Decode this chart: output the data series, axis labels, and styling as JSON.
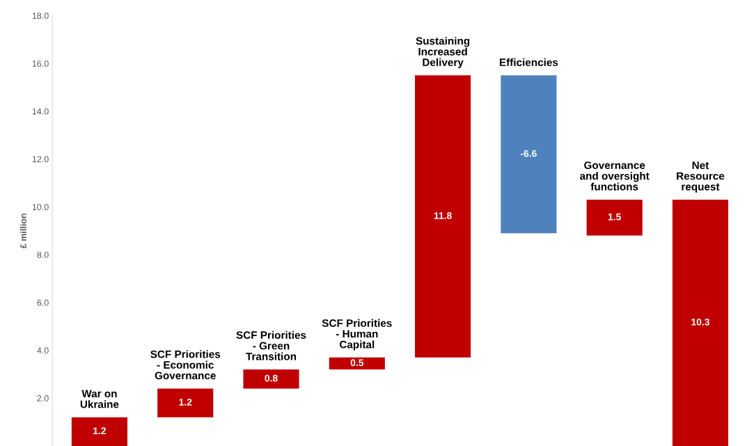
{
  "chart_data": {
    "type": "bar",
    "categories": [
      "War on\nUkraine",
      "SCF Priorities\n- Economic\nGovernance",
      "SCF Priorities\n- Green\nTransition",
      "SCF Priorities\n- Human\nCapital",
      "Sustaining\nIncreased\nDelivery",
      "Efficiencies",
      "Governance\nand oversight\nfunctions",
      "Net\nResource\nrequest"
    ],
    "values": [
      1.2,
      1.2,
      0.8,
      0.5,
      11.8,
      -6.6,
      1.5,
      10.3
    ],
    "base": [
      0,
      1.2,
      2.4,
      3.2,
      3.7,
      15.5,
      8.8,
      0
    ],
    "colors": [
      "#c00000",
      "#c00000",
      "#c00000",
      "#c00000",
      "#c00000",
      "#4f81bd",
      "#c00000",
      "#c00000"
    ],
    "ylabel": "£ million",
    "ylim": [
      0,
      18
    ],
    "yticks": [
      {
        "value": 2,
        "label": "2.0"
      },
      {
        "value": 4,
        "label": "4.0"
      },
      {
        "value": 6,
        "label": "6.0"
      },
      {
        "value": 8,
        "label": "8.0"
      },
      {
        "value": 10,
        "label": "10.0"
      },
      {
        "value": 12,
        "label": "12.0"
      },
      {
        "value": 14,
        "label": "14.0"
      },
      {
        "value": 16,
        "label": "16.0"
      },
      {
        "value": 18,
        "label": "18.0"
      }
    ],
    "data_labels": true,
    "grid": false,
    "legend": false
  }
}
